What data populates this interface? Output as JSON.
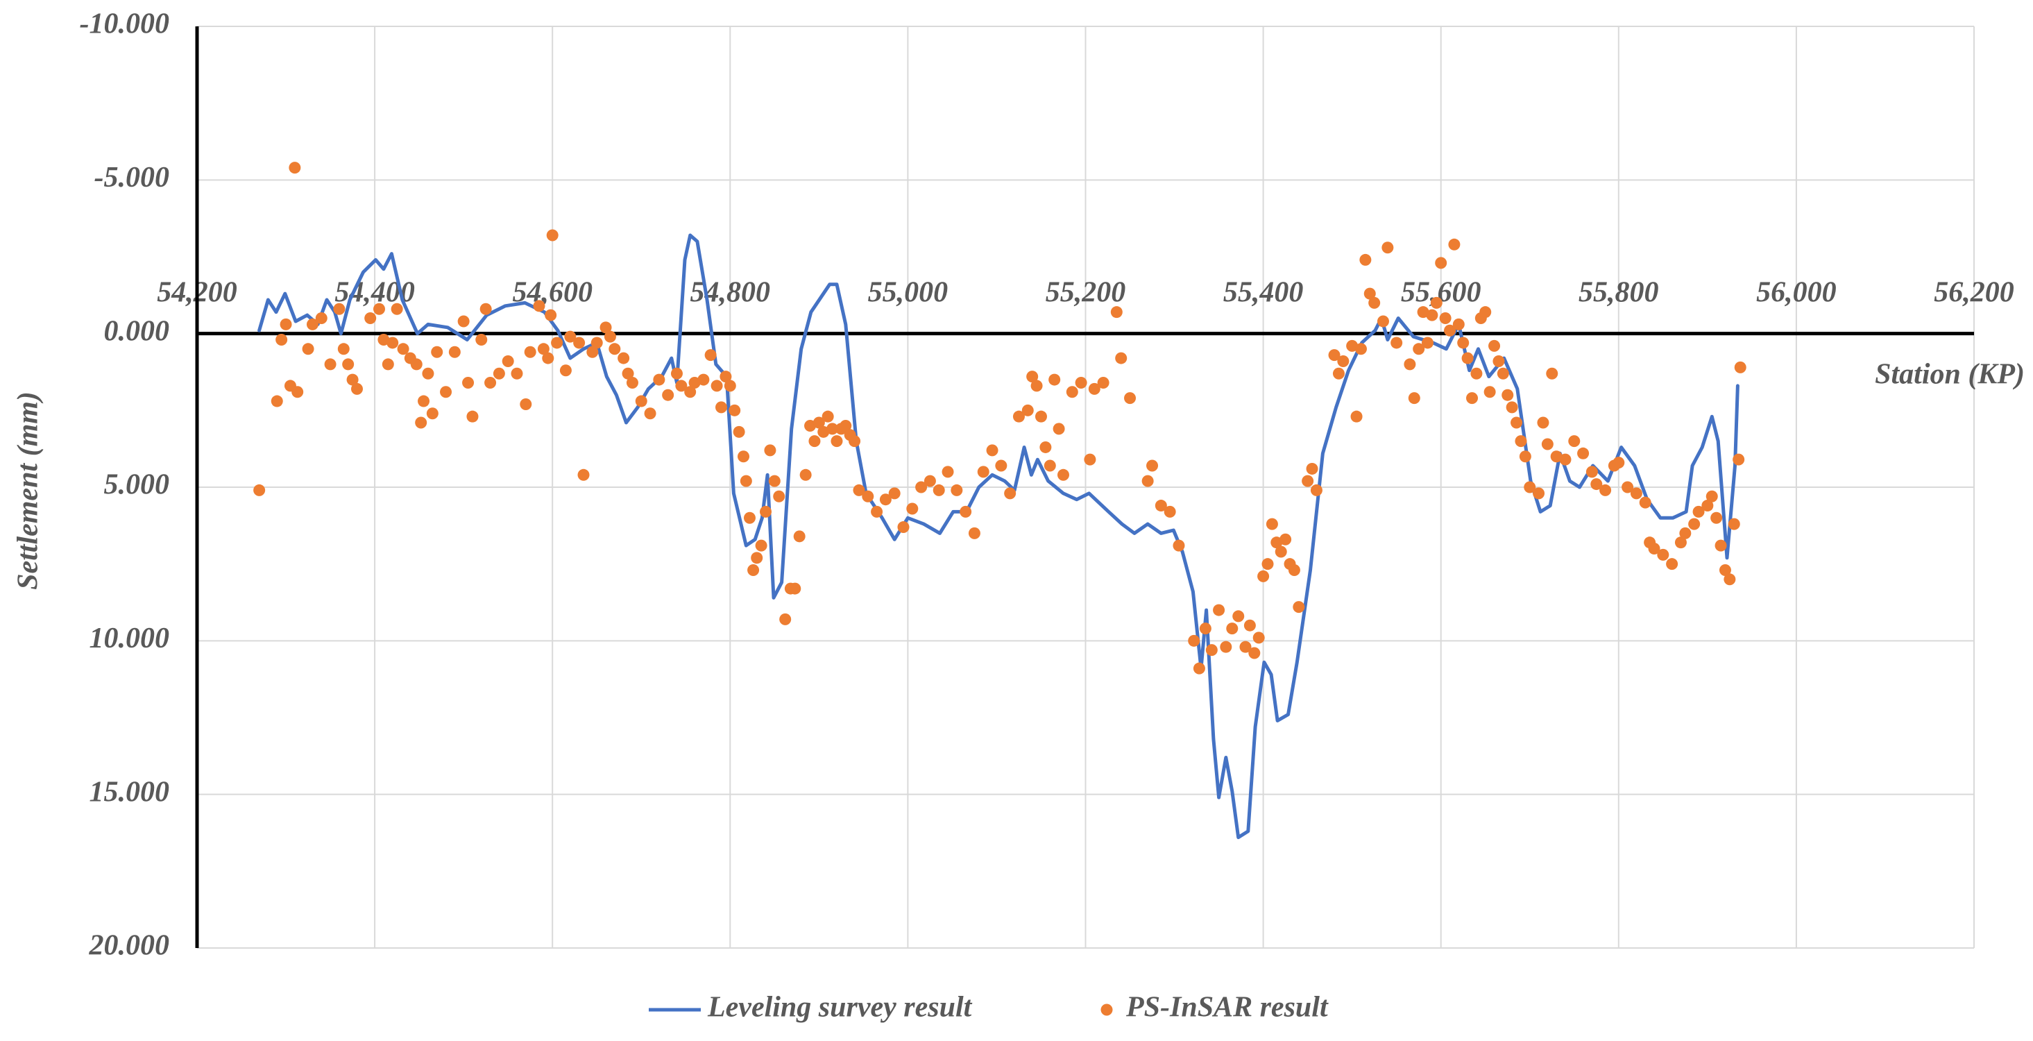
{
  "chart_data": {
    "type": "line",
    "y_label": "Settlement (mm)",
    "x_label": "Station (KP)",
    "xlim": [
      54200,
      56200
    ],
    "xticks": [
      {
        "value": 54200,
        "label": "54,200"
      },
      {
        "value": 54400,
        "label": "54,400"
      },
      {
        "value": 54600,
        "label": "54,600"
      },
      {
        "value": 54800,
        "label": "54,800"
      },
      {
        "value": 55000,
        "label": "55,000"
      },
      {
        "value": 55200,
        "label": "55,200"
      },
      {
        "value": 55400,
        "label": "55,400"
      },
      {
        "value": 55600,
        "label": "55,600"
      },
      {
        "value": 55800,
        "label": "55,800"
      },
      {
        "value": 56000,
        "label": "56,000"
      },
      {
        "value": 56200,
        "label": "56,200"
      }
    ],
    "ylim": [
      -10,
      20
    ],
    "yticks": [
      {
        "value": -10,
        "label": "-10.000"
      },
      {
        "value": -5,
        "label": "-5.000"
      },
      {
        "value": 0,
        "label": "0.000"
      },
      {
        "value": 5,
        "label": "5.000"
      },
      {
        "value": 10,
        "label": "10.000"
      },
      {
        "value": 15,
        "label": "15.000"
      },
      {
        "value": 20,
        "label": "20.000"
      }
    ],
    "y_reversed": true,
    "grid": true,
    "legend": "bottom",
    "series": [
      {
        "name": "Leveling survey result",
        "type": "line",
        "color": "#4472c4",
        "x": [
          54270,
          54280,
          54289,
          54299,
          54311,
          54324,
          54336,
          54346,
          54355,
          54362,
          54372,
          54387,
          54401,
          54410,
          54419,
          54431,
          54448,
          54460,
          54482,
          54504,
          54526,
          54547,
          54569,
          54591,
          54606,
          54620,
          54635,
          54650,
          54661,
          54672,
          54683,
          54696,
          54708,
          54723,
          54734,
          54740,
          54749,
          54755,
          54763,
          54774,
          54784,
          54796,
          54804,
          54818,
          54828,
          54836,
          54842,
          54849,
          54858,
          54869,
          54880,
          54891,
          54912,
          54920,
          54930,
          54942,
          54953,
          54971,
          54985,
          55000,
          55018,
          55036,
          55051,
          55066,
          55080,
          55095,
          55109,
          55120,
          55131,
          55139,
          55146,
          55158,
          55175,
          55190,
          55204,
          55226,
          55241,
          55255,
          55270,
          55285,
          55299,
          55309,
          55321,
          55330,
          55336,
          55344,
          55350,
          55358,
          55365,
          55372,
          55383,
          55391,
          55401,
          55409,
          55416,
          55428,
          55438,
          55453,
          55467,
          55482,
          55496,
          55511,
          55526,
          55533,
          55540,
          55552,
          55569,
          55591,
          55606,
          55620,
          55632,
          55642,
          55654,
          55671,
          55686,
          55701,
          55712,
          55723,
          55734,
          55745,
          55756,
          55771,
          55788,
          55803,
          55818,
          55832,
          55847,
          55861,
          55876,
          55883,
          55894,
          55905,
          55912,
          55922,
          55931,
          55934
        ],
        "values": [
          -0.1,
          -1.1,
          -0.7,
          -1.3,
          -0.4,
          -0.6,
          -0.3,
          -1.1,
          -0.7,
          0,
          -1.1,
          -2.0,
          -2.4,
          -2.1,
          -2.6,
          -1.1,
          0,
          -0.3,
          -0.2,
          0.2,
          -0.6,
          -0.9,
          -1.0,
          -0.7,
          -0.1,
          0.8,
          0.5,
          0.3,
          1.4,
          2.0,
          2.9,
          2.4,
          1.8,
          1.4,
          0.8,
          1.6,
          -2.4,
          -3.2,
          -3.0,
          -1.1,
          1.0,
          1.4,
          5.2,
          6.9,
          6.7,
          6.0,
          4.6,
          8.6,
          8.1,
          3.1,
          0.5,
          -0.7,
          -1.6,
          -1.6,
          -0.3,
          3.5,
          5.2,
          6.0,
          6.7,
          6.0,
          6.2,
          6.5,
          5.8,
          5.8,
          5.0,
          4.6,
          4.8,
          5.1,
          3.7,
          4.6,
          4.1,
          4.8,
          5.2,
          5.4,
          5.2,
          5.8,
          6.2,
          6.5,
          6.2,
          6.5,
          6.4,
          7.1,
          8.4,
          10.9,
          9.0,
          13.2,
          15.1,
          13.8,
          14.9,
          16.4,
          16.2,
          12.8,
          10.7,
          11.1,
          12.6,
          12.4,
          10.7,
          7.7,
          3.9,
          2.4,
          1.2,
          0.3,
          -0.1,
          -0.5,
          0.2,
          -0.5,
          0.1,
          0.3,
          0.5,
          -0.3,
          1.2,
          0.5,
          1.4,
          0.8,
          1.8,
          4.8,
          5.8,
          5.6,
          3.9,
          4.8,
          5.0,
          4.3,
          4.8,
          3.7,
          4.3,
          5.4,
          6.0,
          6.0,
          5.8,
          4.3,
          3.7,
          2.7,
          3.5,
          7.3,
          4.3,
          1.7
        ]
      },
      {
        "name": "PS-InSAR result",
        "type": "scatter",
        "color": "#ed7d31",
        "x": [
          54270,
          54290,
          54295,
          54300,
          54305,
          54310,
          54313,
          54325,
          54330,
          54340,
          54350,
          54360,
          54365,
          54370,
          54375,
          54380,
          54395,
          54405,
          54410,
          54415,
          54420,
          54425,
          54432,
          54440,
          54447,
          54452,
          54455,
          54460,
          54465,
          54470,
          54480,
          54490,
          54500,
          54505,
          54510,
          54520,
          54525,
          54530,
          54540,
          54550,
          54560,
          54570,
          54575,
          54585,
          54590,
          54595,
          54598,
          54600,
          54605,
          54615,
          54620,
          54630,
          54635,
          54645,
          54650,
          54660,
          54665,
          54670,
          54680,
          54685,
          54690,
          54700,
          54710,
          54720,
          54730,
          54740,
          54745,
          54755,
          54760,
          54770,
          54778,
          54785,
          54790,
          54795,
          54800,
          54805,
          54810,
          54815,
          54818,
          54822,
          54826,
          54830,
          54835,
          54840,
          54845,
          54850,
          54855,
          54862,
          54868,
          54873,
          54878,
          54885,
          54890,
          54895,
          54900,
          54905,
          54910,
          54915,
          54920,
          54925,
          54930,
          54935,
          54940,
          54945,
          54955,
          54965,
          54975,
          54985,
          54995,
          55005,
          55015,
          55025,
          55035,
          55045,
          55055,
          55065,
          55075,
          55085,
          55095,
          55105,
          55115,
          55125,
          55135,
          55140,
          55145,
          55150,
          55155,
          55160,
          55165,
          55170,
          55175,
          55185,
          55195,
          55205,
          55210,
          55220,
          55235,
          55240,
          55250,
          55270,
          55275,
          55285,
          55295,
          55305,
          55322,
          55328,
          55335,
          55342,
          55350,
          55358,
          55365,
          55372,
          55380,
          55385,
          55390,
          55395,
          55400,
          55405,
          55410,
          55415,
          55420,
          55425,
          55430,
          55435,
          55440,
          55450,
          55455,
          55460,
          55480,
          55485,
          55490,
          55500,
          55505,
          55510,
          55515,
          55520,
          55525,
          55535,
          55540,
          55550,
          55565,
          55570,
          55575,
          55580,
          55585,
          55590,
          55595,
          55600,
          55605,
          55610,
          55615,
          55620,
          55625,
          55630,
          55635,
          55640,
          55645,
          55650,
          55655,
          55660,
          55665,
          55670,
          55675,
          55680,
          55685,
          55690,
          55695,
          55700,
          55710,
          55715,
          55720,
          55725,
          55730,
          55740,
          55750,
          55760,
          55770,
          55775,
          55785,
          55795,
          55800,
          55810,
          55820,
          55830,
          55835,
          55840,
          55850,
          55860,
          55870,
          55875,
          55885,
          55890,
          55900,
          55905,
          55910,
          55915,
          55920,
          55925,
          55930,
          55935,
          55937
        ],
        "values": [
          5.1,
          2.2,
          0.2,
          -0.3,
          1.7,
          -5.4,
          1.9,
          0.5,
          -0.3,
          -0.5,
          1.0,
          -0.8,
          0.5,
          1.0,
          1.5,
          1.8,
          -0.5,
          -0.8,
          0.2,
          1.0,
          0.3,
          -0.8,
          0.5,
          0.8,
          1.0,
          2.9,
          2.2,
          1.3,
          2.6,
          0.6,
          1.9,
          0.6,
          -0.4,
          1.6,
          2.7,
          0.2,
          -0.8,
          1.6,
          1.3,
          0.9,
          1.3,
          2.3,
          0.6,
          -0.9,
          0.5,
          0.8,
          -0.6,
          -3.2,
          0.3,
          1.2,
          0.1,
          0.3,
          4.6,
          0.6,
          0.3,
          -0.2,
          0.1,
          0.5,
          0.8,
          1.3,
          1.6,
          2.2,
          2.6,
          1.5,
          2.0,
          1.3,
          1.7,
          1.9,
          1.6,
          1.5,
          0.7,
          1.7,
          2.4,
          1.4,
          1.7,
          2.5,
          3.2,
          4.0,
          4.8,
          6.0,
          7.7,
          7.3,
          6.9,
          5.8,
          3.8,
          4.8,
          5.3,
          9.3,
          8.3,
          8.3,
          6.6,
          4.6,
          3.0,
          3.5,
          2.9,
          3.2,
          2.7,
          3.1,
          3.5,
          3.1,
          3.0,
          3.3,
          3.5,
          5.1,
          5.3,
          5.8,
          5.4,
          5.2,
          6.3,
          5.7,
          5.0,
          4.8,
          5.1,
          4.5,
          5.1,
          5.8,
          6.5,
          4.5,
          3.8,
          4.3,
          5.2,
          2.7,
          2.5,
          1.4,
          1.7,
          2.7,
          3.7,
          4.3,
          1.5,
          3.1,
          4.6,
          1.9,
          1.6,
          4.1,
          1.8,
          1.6,
          -0.7,
          0.8,
          2.1,
          4.8,
          4.3,
          5.6,
          5.8,
          6.9,
          10.0,
          10.9,
          9.6,
          10.3,
          9.0,
          10.2,
          9.6,
          9.2,
          10.2,
          9.5,
          10.4,
          9.9,
          7.9,
          7.5,
          6.2,
          6.8,
          7.1,
          6.7,
          7.5,
          7.7,
          8.9,
          4.8,
          4.4,
          5.1,
          0.7,
          1.3,
          0.9,
          0.4,
          2.7,
          0.5,
          -2.4,
          -1.3,
          -1.0,
          -0.4,
          -2.8,
          0.3,
          1.0,
          2.1,
          0.5,
          -0.7,
          0.3,
          -0.6,
          -1.0,
          -2.3,
          -0.5,
          -0.1,
          -2.9,
          -0.3,
          0.3,
          0.8,
          2.1,
          1.3,
          -0.5,
          -0.7,
          1.9,
          0.4,
          0.9,
          1.3,
          2.0,
          2.4,
          2.9,
          3.5,
          4.0,
          5.0,
          5.2,
          2.9,
          3.6,
          1.3,
          4.0,
          4.1,
          3.5,
          3.9,
          4.5,
          4.9,
          5.1,
          4.3,
          4.2,
          5.0,
          5.2,
          5.5,
          6.8,
          7.0,
          7.2,
          7.5,
          6.8,
          6.5,
          6.2,
          5.8,
          5.6,
          5.3,
          6.0,
          6.9,
          7.7,
          8.0,
          6.2,
          4.1,
          1.1
        ]
      }
    ]
  }
}
